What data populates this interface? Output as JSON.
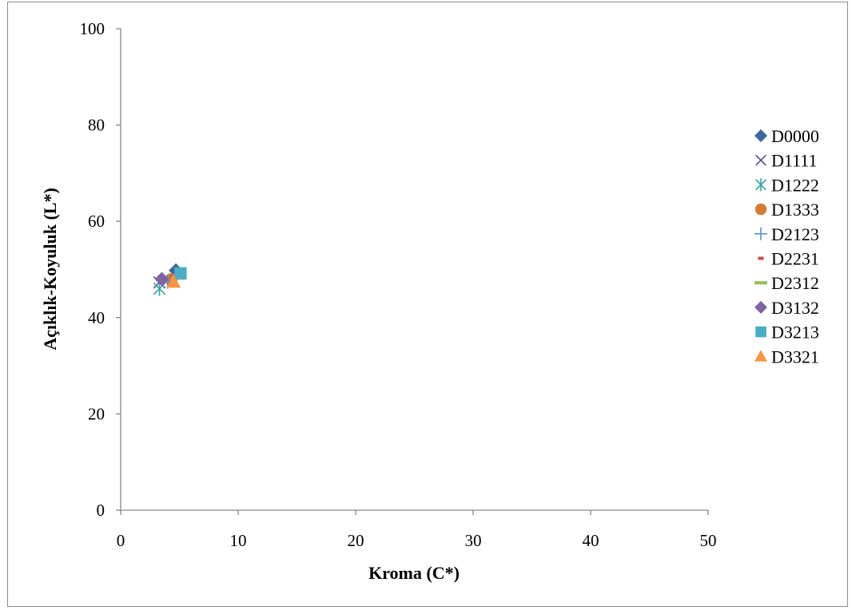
{
  "chart_data": {
    "type": "scatter",
    "title": "",
    "xlabel": "Kroma (C*)",
    "ylabel": "Açıklık-Koyuluk  (L*)",
    "xlim": [
      0,
      50
    ],
    "ylim": [
      0,
      100
    ],
    "xticks": [
      "0",
      "10",
      "20",
      "30",
      "40",
      "50"
    ],
    "yticks": [
      "0",
      "20",
      "40",
      "60",
      "80",
      "100"
    ],
    "grid": false,
    "legend_position": "right",
    "series": [
      {
        "name": "D0000",
        "marker": "diamond",
        "color": "#3d679c",
        "points": [
          {
            "x": 4.7,
            "y": 49.8
          }
        ]
      },
      {
        "name": "D1111",
        "marker": "x",
        "color": "#5b4a7e",
        "points": [
          {
            "x": 3.3,
            "y": 47.3
          }
        ]
      },
      {
        "name": "D1222",
        "marker": "asterisk",
        "color": "#39a0a8",
        "points": [
          {
            "x": 3.3,
            "y": 46.0
          }
        ]
      },
      {
        "name": "D1333",
        "marker": "circle",
        "color": "#d27c36",
        "points": [
          {
            "x": 4.3,
            "y": 47.9
          }
        ]
      },
      {
        "name": "D2123",
        "marker": "plus",
        "color": "#5b8ec9",
        "points": [
          {
            "x": 4.0,
            "y": 47.5
          }
        ]
      },
      {
        "name": "D2231",
        "marker": "dash",
        "color": "#c0504d",
        "points": [
          {
            "x": 4.5,
            "y": 48.5
          }
        ]
      },
      {
        "name": "D2312",
        "marker": "longdash",
        "color": "#9bbb59",
        "points": [
          {
            "x": 4.9,
            "y": 48.2
          }
        ]
      },
      {
        "name": "D3132",
        "marker": "diamond",
        "color": "#7f63a3",
        "points": [
          {
            "x": 3.5,
            "y": 48.0
          }
        ]
      },
      {
        "name": "D3213",
        "marker": "square",
        "color": "#4bacc6",
        "points": [
          {
            "x": 5.1,
            "y": 49.2
          }
        ]
      },
      {
        "name": "D3321",
        "marker": "triangle",
        "color": "#f79646",
        "points": [
          {
            "x": 4.5,
            "y": 47.4
          }
        ]
      }
    ]
  }
}
